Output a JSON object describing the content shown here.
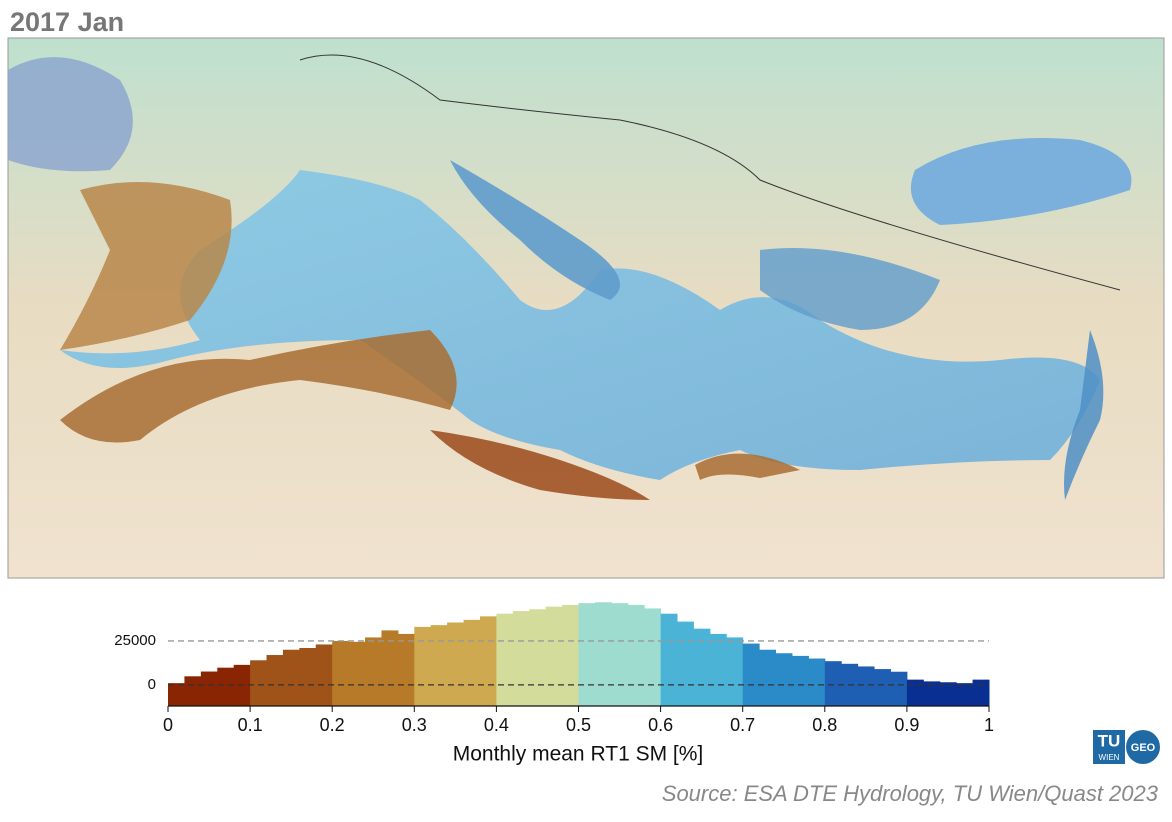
{
  "title": "2017 Jan",
  "source": "Source: ESA DTE Hydrology, TU Wien/Quast 2023",
  "logo": {
    "left": "TU",
    "left_sub": "WIEN",
    "right": "GEO"
  },
  "chart_data": {
    "type": "histogram",
    "xlabel": "Monthly mean RT1 SM [%]",
    "bins": [
      0,
      0.02,
      0.04,
      0.06,
      0.08,
      0.1,
      0.12,
      0.14,
      0.16,
      0.18,
      0.2,
      0.22,
      0.24,
      0.26,
      0.28,
      0.3,
      0.32,
      0.34,
      0.36,
      0.38,
      0.4,
      0.42,
      0.44,
      0.46,
      0.48,
      0.5,
      0.52,
      0.54,
      0.56,
      0.58,
      0.6,
      0.62,
      0.64,
      0.66,
      0.68,
      0.7,
      0.72,
      0.74,
      0.76,
      0.78,
      0.8,
      0.82,
      0.84,
      0.86,
      0.88,
      0.9,
      0.92,
      0.94,
      0.96,
      0.98,
      1
    ],
    "values": [
      1000,
      4900,
      7600,
      9800,
      11400,
      14000,
      17000,
      20000,
      21000,
      23000,
      25000,
      24500,
      27000,
      31000,
      29000,
      33000,
      34000,
      35500,
      37000,
      39000,
      40500,
      42000,
      43000,
      44500,
      45500,
      46500,
      47000,
      46500,
      45500,
      43500,
      40500,
      36000,
      32000,
      29000,
      27000,
      23500,
      20000,
      18000,
      16500,
      15000,
      13500,
      12000,
      10500,
      9000,
      7500,
      3000,
      2000,
      1500,
      1000,
      3000
    ],
    "colors": [
      "#8a2504",
      "#9f5319",
      "#b67a29",
      "#cfa94f",
      "#d3dc9b",
      "#9edcd0",
      "#4bb3d6",
      "#2b8ac8",
      "#1f5fb3",
      "#0a2f93"
    ],
    "xlim": [
      0,
      1
    ],
    "xticks": [
      0,
      0.1,
      0.2,
      0.3,
      0.4,
      0.5,
      0.6,
      0.7,
      0.8,
      0.9,
      1
    ],
    "ylim": [
      -12000,
      50000
    ],
    "yticks": [
      0,
      25000
    ],
    "grid": true
  }
}
